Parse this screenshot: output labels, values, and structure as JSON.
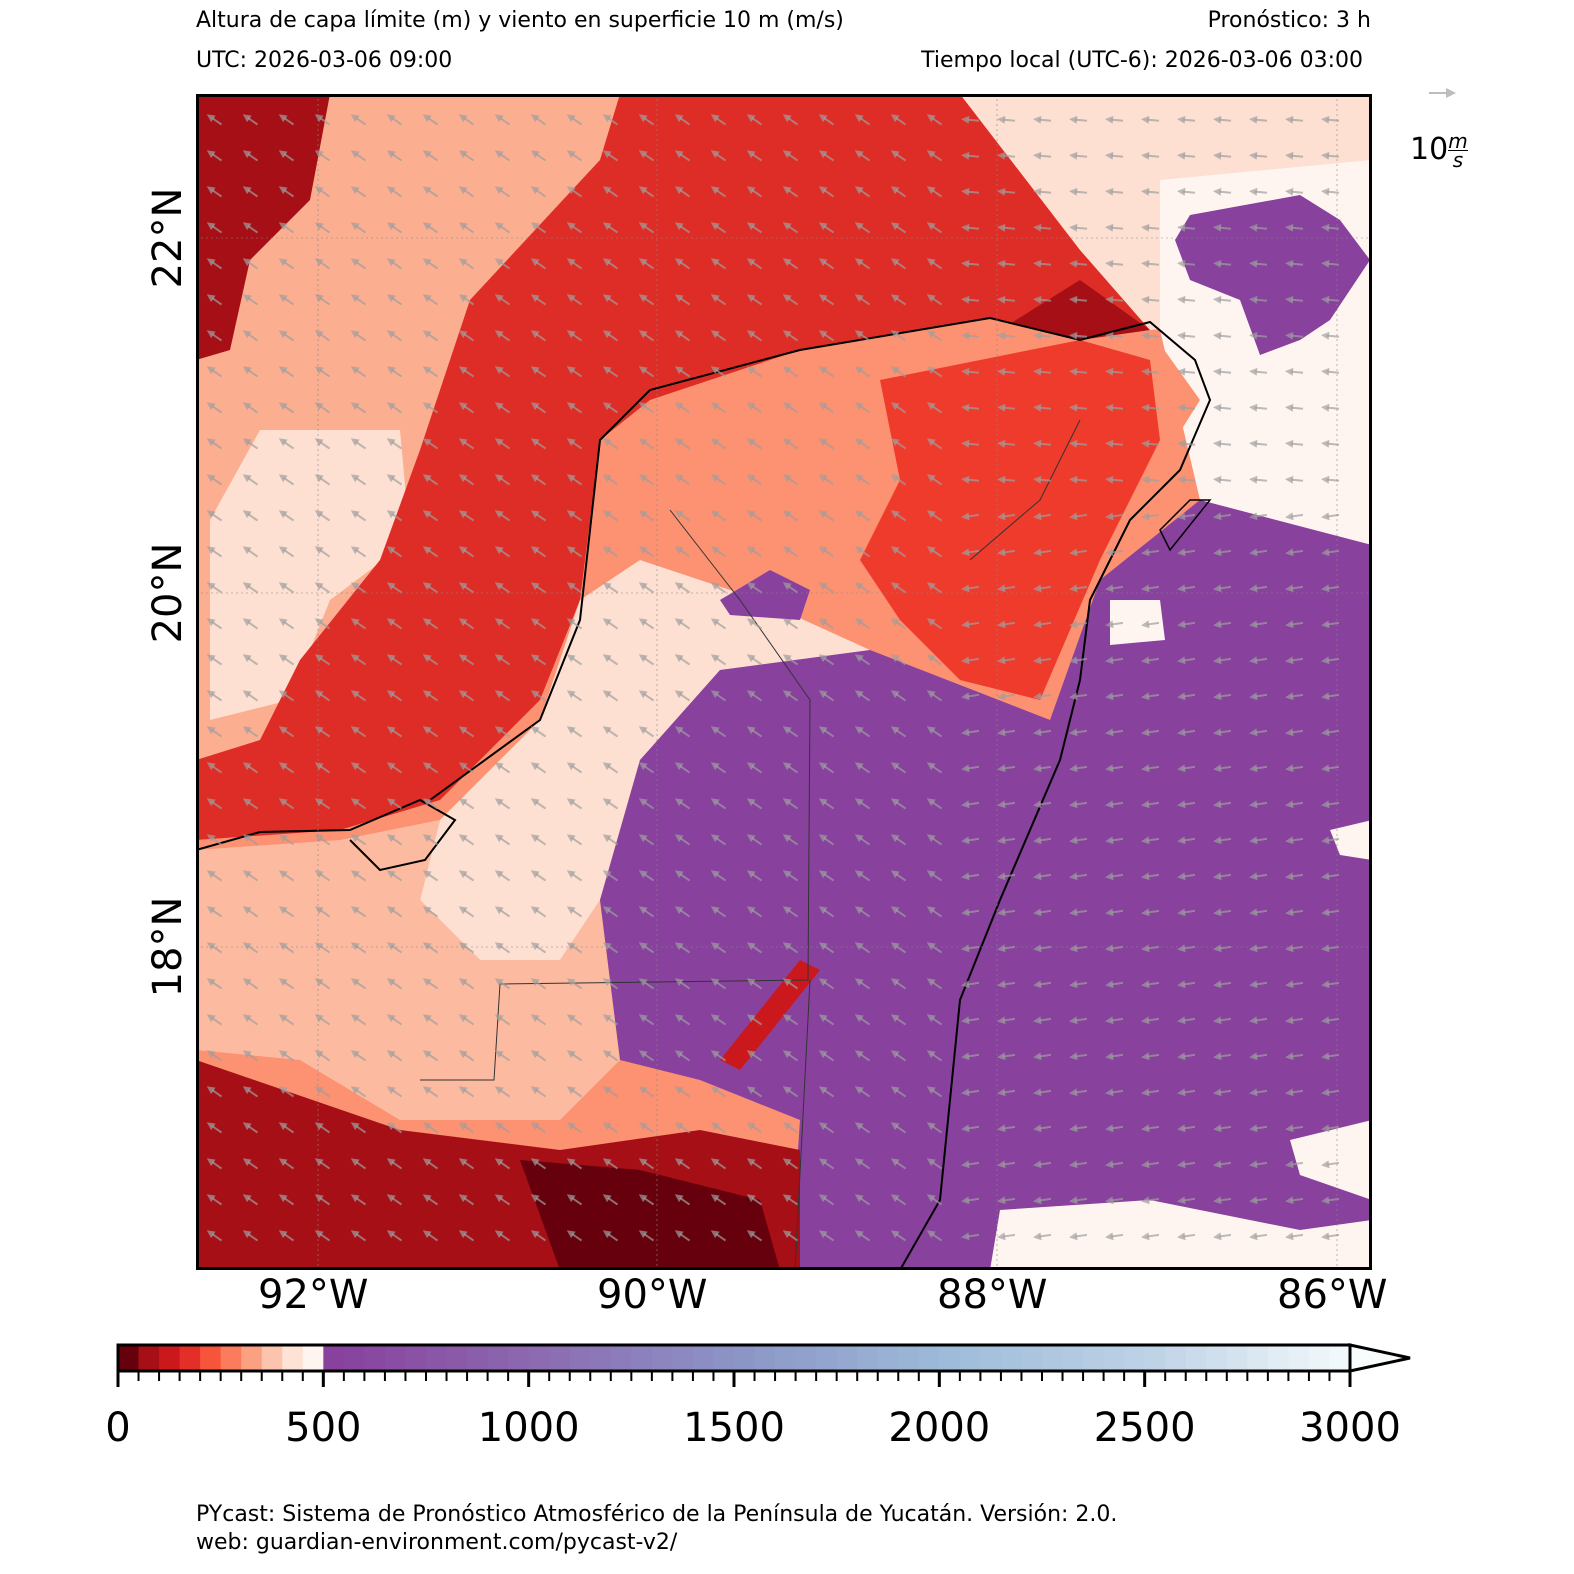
{
  "header": {
    "title": "Altura de capa límite (m) y viento en superficie 10 m (m/s)",
    "forecast": "Pronóstico: 3 h",
    "utc": "UTC:  2026-03-06 09:00",
    "local": "Tiempo local (UTC-6): 2026-03-06 03:00"
  },
  "wind_key": {
    "value": "10",
    "unit_num": "m",
    "unit_den": "s",
    "arrow_color": "#bdbdbd"
  },
  "map": {
    "lon_labels": [
      "92°W",
      "90°W",
      "88°W",
      "86°W"
    ],
    "lat_labels": [
      "22°N",
      "20°N",
      "18°N"
    ],
    "variable": "boundary layer height",
    "colors": {
      "land_base": "#fb6a4a",
      "ocean_purple": "#88419d",
      "coast": "#000000",
      "wind_arrow": "#9e9e9e"
    }
  },
  "colorbar": {
    "min": 0,
    "max": 3000,
    "step": 50,
    "extend": "max",
    "labels": [
      "0",
      "500",
      "1000",
      "1500",
      "2000",
      "2500",
      "3000"
    ],
    "red_colors": [
      "#67000d",
      "#a50f15",
      "#cb181d",
      "#e32f27",
      "#f6553c",
      "#fb7c5c",
      "#fca082",
      "#fdc4ad",
      "#fee2d5",
      "#fff5f0"
    ],
    "purple_stops": [
      [
        500,
        "#88419d"
      ],
      [
        1000,
        "#8c6bb1"
      ],
      [
        1500,
        "#8c96c6"
      ],
      [
        2000,
        "#9ebcda"
      ],
      [
        2500,
        "#bfd3e6"
      ],
      [
        3000,
        "#f7fcfd"
      ]
    ]
  },
  "footer": {
    "line1": "PYcast: Sistema de Pronóstico Atmosférico de la Península de Yucatán. Versión: 2.0.",
    "line2": "web: guardian-environment.com/pycast-v2/"
  }
}
